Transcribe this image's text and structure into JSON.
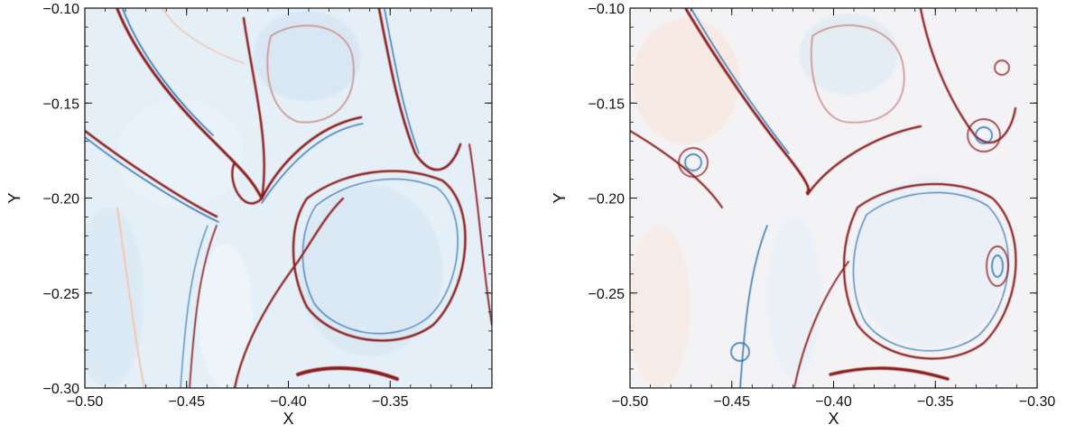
{
  "chart_data": [
    {
      "type": "heatmap",
      "title": "",
      "xlabel": "X",
      "ylabel": "Y",
      "xlim": [
        -0.5,
        -0.3
      ],
      "ylim": [
        -0.3,
        -0.1
      ],
      "xticks": [
        -0.5,
        -0.45,
        -0.4,
        -0.35
      ],
      "xtick_labels": [
        "−0.50",
        "−0.45",
        "−0.40",
        "−0.35"
      ],
      "yticks": [
        -0.3,
        -0.25,
        -0.2,
        -0.15,
        -0.1
      ],
      "ytick_labels": [
        "−0.30",
        "−0.25",
        "−0.20",
        "−0.15",
        "−0.10"
      ],
      "colormap": [
        "#2166ac",
        "#dbe9f4",
        "#ffffff",
        "#f4c7b0",
        "#8b1a1a"
      ],
      "background": "#e4eff8"
    },
    {
      "type": "heatmap",
      "title": "",
      "xlabel": "X",
      "ylabel": "Y",
      "xlim": [
        -0.5,
        -0.3
      ],
      "ylim": [
        -0.3,
        -0.1
      ],
      "xticks": [
        -0.5,
        -0.45,
        -0.4,
        -0.35,
        -0.3
      ],
      "xtick_labels": [
        "−0.50",
        "−0.45",
        "−0.40",
        "−0.35",
        "−0.30"
      ],
      "yticks": [
        -0.25,
        -0.2,
        -0.15,
        -0.1
      ],
      "ytick_labels": [
        "−0.25",
        "−0.20",
        "−0.15",
        "−0.10"
      ],
      "colormap": [
        "#2166ac",
        "#dbe9f4",
        "#ffffff",
        "#f4c7b0",
        "#8b1a1a"
      ],
      "background": "#f3f3f6"
    }
  ]
}
